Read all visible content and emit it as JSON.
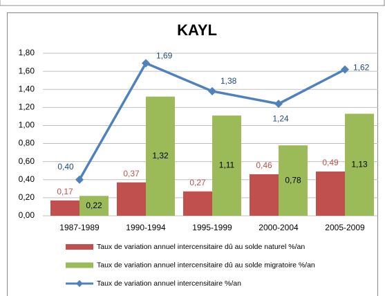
{
  "chart_data": {
    "type": "bar",
    "title": "KAYL",
    "categories": [
      "1987-1989",
      "1990-1994",
      "1995-1999",
      "2000-2004",
      "2005-2009"
    ],
    "series": [
      {
        "name": "Taux de variation annuel intercensitaire dû au solde naturel   %/an",
        "color": "#c0504d",
        "type": "bar",
        "values": [
          0.17,
          0.37,
          0.27,
          0.46,
          0.49
        ],
        "value_labels": [
          "0,17",
          "0,37",
          "0,27",
          "0,46",
          "0,49"
        ]
      },
      {
        "name": "Taux de variation annuel intercensitaire dû au solde migratoire  %/an",
        "color": "#9bbb59",
        "type": "bar",
        "values": [
          0.22,
          1.32,
          1.11,
          0.78,
          1.13
        ],
        "value_labels": [
          "0,22",
          "1,32",
          "1,11",
          "0,78",
          "1,13"
        ]
      },
      {
        "name": "Taux de variation annuel intercensitaire %/an",
        "color": "#4f81bd",
        "type": "line",
        "values": [
          0.4,
          1.69,
          1.38,
          1.24,
          1.62
        ],
        "value_labels": [
          "0,40",
          "1,69",
          "1,38",
          "1,24",
          "1,62"
        ]
      }
    ],
    "ylim": [
      0,
      1.8
    ],
    "yticks": [
      {
        "value": 0,
        "label": "0,00"
      },
      {
        "value": 0.2,
        "label": "0,20"
      },
      {
        "value": 0.4,
        "label": "0,40"
      },
      {
        "value": 0.6,
        "label": "0,60"
      },
      {
        "value": 0.8,
        "label": "0,80"
      },
      {
        "value": 1.0,
        "label": "1,00"
      },
      {
        "value": 1.2,
        "label": "1,20"
      },
      {
        "value": 1.4,
        "label": "1,40"
      },
      {
        "value": 1.6,
        "label": "1,60"
      },
      {
        "value": 1.8,
        "label": "1,80"
      }
    ],
    "grid": true,
    "legend": "bottom"
  }
}
